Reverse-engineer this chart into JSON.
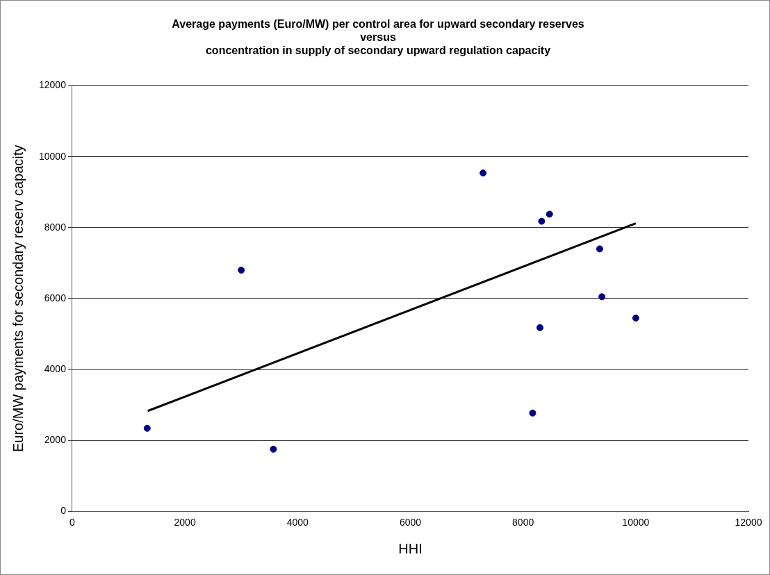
{
  "chart_data": {
    "type": "scatter",
    "title": "Average payments (Euro/MW) per control area for upward secondary reserves\nversus\nconcentration in supply of secondary upward regulation capacity",
    "xlabel": "HHI",
    "ylabel": "Euro/MW payments for secondary reserv capacity",
    "series": [
      {
        "color": "#000080",
        "x": [
          1330,
          3000,
          3570,
          7290,
          8330,
          8470,
          9360,
          9400,
          10000,
          8300,
          8170
        ],
        "values": [
          2340,
          6800,
          1750,
          9540,
          8180,
          8380,
          7400,
          6050,
          5450,
          5180,
          2770
        ]
      },
      {
        "type": "line",
        "marker": "none",
        "color": "#000000",
        "x": [
          1340,
          10000
        ],
        "values": [
          2830,
          8120
        ]
      }
    ],
    "xlim": [
      0,
      12000
    ],
    "xticks": [
      0,
      2000,
      4000,
      6000,
      8000,
      10000,
      12000
    ],
    "ylim": [
      0,
      12000
    ],
    "yticks": [
      0,
      2000,
      4000,
      6000,
      8000,
      10000,
      12000
    ],
    "grid": "y",
    "legend": false,
    "marker": "circle",
    "line_style": "solid"
  }
}
